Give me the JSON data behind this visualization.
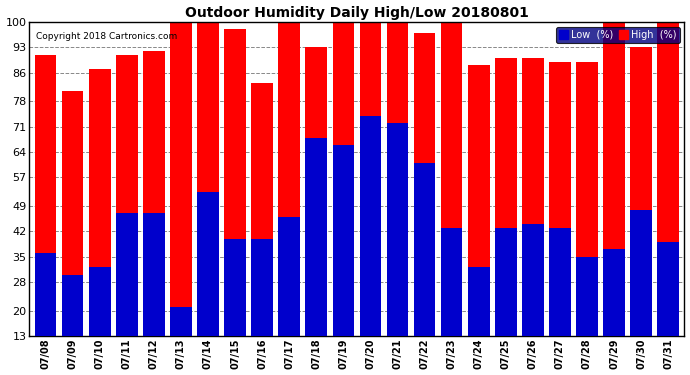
{
  "title": "Outdoor Humidity Daily High/Low 20180801",
  "copyright": "Copyright 2018 Cartronics.com",
  "dates": [
    "07/08",
    "07/09",
    "07/10",
    "07/11",
    "07/12",
    "07/13",
    "07/14",
    "07/15",
    "07/16",
    "07/17",
    "07/18",
    "07/19",
    "07/20",
    "07/21",
    "07/22",
    "07/23",
    "07/24",
    "07/25",
    "07/26",
    "07/27",
    "07/28",
    "07/29",
    "07/30",
    "07/31"
  ],
  "high": [
    91,
    81,
    87,
    91,
    92,
    100,
    100,
    98,
    83,
    100,
    93,
    100,
    100,
    100,
    97,
    101,
    88,
    90,
    90,
    89,
    89,
    100,
    93,
    100
  ],
  "low": [
    36,
    30,
    32,
    47,
    47,
    21,
    53,
    40,
    40,
    46,
    68,
    66,
    74,
    72,
    61,
    43,
    32,
    43,
    44,
    43,
    35,
    37,
    48,
    39
  ],
  "high_color": "#ff0000",
  "low_color": "#0000cc",
  "bg_color": "#ffffff",
  "grid_color": "#888888",
  "ylim_min": 13,
  "ylim_max": 100,
  "yticks": [
    13,
    20,
    28,
    35,
    42,
    49,
    57,
    64,
    71,
    78,
    86,
    93,
    100
  ],
  "bar_width": 0.8,
  "legend_low_label": "Low  (%)",
  "legend_high_label": "High  (%)"
}
